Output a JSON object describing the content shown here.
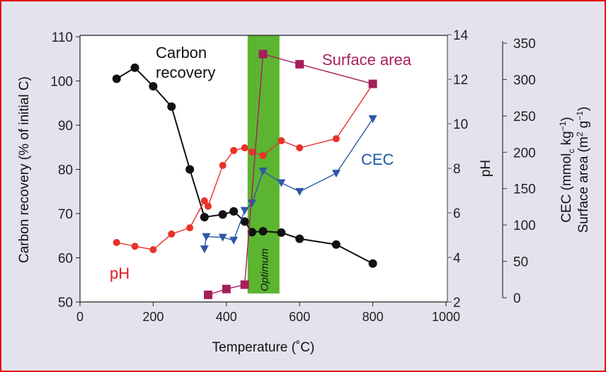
{
  "chart_data": {
    "type": "line",
    "xlabel": "Temperature (˚C)",
    "ylabel_left": "Carbon recovery (% of initial C)",
    "ylabel_right1": "pH",
    "ylabel_right2_line1": "CEC (mmol",
    "ylabel_right2_line2": "Surface area (m",
    "ylabel_right2_full": [
      "CEC (mmolc kg-1)",
      "Surface area (m2 g-1)"
    ],
    "xlim": [
      0,
      1000
    ],
    "xticks": [
      "0",
      "200",
      "400",
      "600",
      "800",
      "1000"
    ],
    "ylim_left": [
      50,
      110
    ],
    "yticks_left": [
      "50",
      "60",
      "70",
      "80",
      "90",
      "100",
      "110"
    ],
    "ylim_ph": [
      2,
      14
    ],
    "yticks_ph": [
      "2",
      "4",
      "6",
      "8",
      "10",
      "12",
      "14"
    ],
    "ylim_cec": [
      0,
      350
    ],
    "yticks_cec": [
      "0",
      "50",
      "100",
      "150",
      "200",
      "250",
      "300",
      "350"
    ],
    "optimum": {
      "label": "Optimum",
      "range": [
        458,
        545
      ],
      "color": "#5cb531"
    },
    "series": [
      {
        "name": "Carbon recovery",
        "label_line1": "Carbon",
        "label_line2": "recovery",
        "axis": "left",
        "color": "#111111",
        "marker": "circle",
        "x": [
          100,
          150,
          200,
          250,
          300,
          340,
          390,
          420,
          450,
          470,
          500,
          550,
          600,
          700,
          800
        ],
        "y": [
          100.5,
          103,
          98.8,
          94.2,
          80,
          69.2,
          69.8,
          70.5,
          68.2,
          65.8,
          66,
          65.7,
          64.3,
          63,
          58.7
        ]
      },
      {
        "name": "pH",
        "axis": "ph",
        "color": "#e8322a",
        "marker": "circle",
        "x": [
          100,
          150,
          200,
          250,
          300,
          340,
          350,
          390,
          420,
          450,
          470,
          500,
          550,
          600,
          700,
          800
        ],
        "y": [
          4.67,
          4.5,
          4.35,
          5.05,
          5.33,
          6.54,
          6.3,
          8.13,
          8.8,
          8.92,
          8.73,
          8.57,
          9.24,
          8.92,
          9.33,
          11.78
        ]
      },
      {
        "name": "CEC",
        "axis": "cec",
        "color": "#2f57a8",
        "marker": "triangle-down",
        "x": [
          340,
          345,
          390,
          420,
          450,
          470,
          500,
          550,
          600,
          700,
          800
        ],
        "y": [
          67,
          84,
          83,
          79,
          120,
          130,
          174,
          158,
          146,
          171,
          246
        ]
      },
      {
        "name": "Surface area",
        "axis": "cec",
        "color": "#a51f5a",
        "marker": "square",
        "x": [
          350,
          400,
          450,
          500,
          600,
          800
        ],
        "y": [
          4,
          12,
          18,
          335,
          321,
          294
        ]
      }
    ]
  }
}
